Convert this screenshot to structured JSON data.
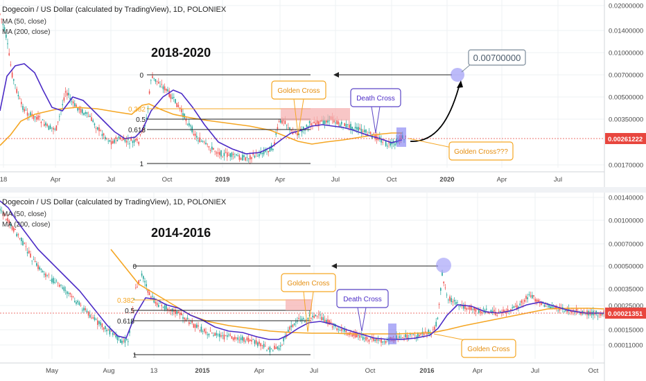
{
  "colors": {
    "ma50": "#4b2bc6",
    "ma200": "#f5a623",
    "candle_up": "#26a69a",
    "candle_down": "#ef5350",
    "price_badge": "#e8463e",
    "fib_orange": "#f5a623",
    "annotation_purple": "#5b45c6",
    "grid": "#eef0f3",
    "axis_text": "#4a4a4a"
  },
  "chart_data": [
    {
      "type": "candlestick",
      "title": "Dogecoin / US Dollar (calculated by TradingView), 1D, POLONIEX",
      "indicators": [
        "MA (50, close)",
        "MA (200, close)"
      ],
      "period_label": "2018-2020",
      "y_scale": "log",
      "ylim": [
        0.0015,
        0.022
      ],
      "y_ticks": [
        "0.02000000",
        "0.01400000",
        "0.01000000",
        "0.00700000",
        "0.00500000",
        "0.00350000",
        "0.00261222",
        "0.00170000"
      ],
      "current_price": "0.00261222",
      "x_ticks": [
        "18",
        "Apr",
        "Jul",
        "Oct",
        "2019",
        "Apr",
        "Jul",
        "Oct",
        "2020",
        "Apr",
        "Jul"
      ],
      "fib_levels": [
        "0",
        "0.382",
        "0.5",
        "0.618",
        "1"
      ],
      "annotations": {
        "golden_cross": "Golden Cross",
        "death_cross": "Death Cross",
        "golden_cross_future": "Golden Cross???",
        "target": "0.00700000"
      }
    },
    {
      "type": "candlestick",
      "title": "Dogecoin / US Dollar (calculated by TradingView), 1D, POLONIEX",
      "indicators": [
        "MA (50, close)",
        "MA (200, close)"
      ],
      "period_label": "2014-2016",
      "y_scale": "log",
      "ylim": [
        7.5e-05,
        0.0015
      ],
      "y_ticks": [
        "0.00140000",
        "0.00100000",
        "0.00070000",
        "0.00050000",
        "0.00035000",
        "0.00025000",
        "0.00021351",
        "0.00015000",
        "0.00011000"
      ],
      "current_price": "0.00021351",
      "x_ticks": [
        "May",
        "Aug",
        "13",
        "2015",
        "Apr",
        "Jul",
        "Oct",
        "2016",
        "Apr",
        "Jul",
        "Oct"
      ],
      "fib_levels": [
        "0",
        "0.382",
        "0.5",
        "0.618",
        "1"
      ],
      "annotations": {
        "golden_cross": "Golden Cross",
        "death_cross": "Death Cross",
        "golden_cross_2": "Golden Cross"
      }
    }
  ]
}
